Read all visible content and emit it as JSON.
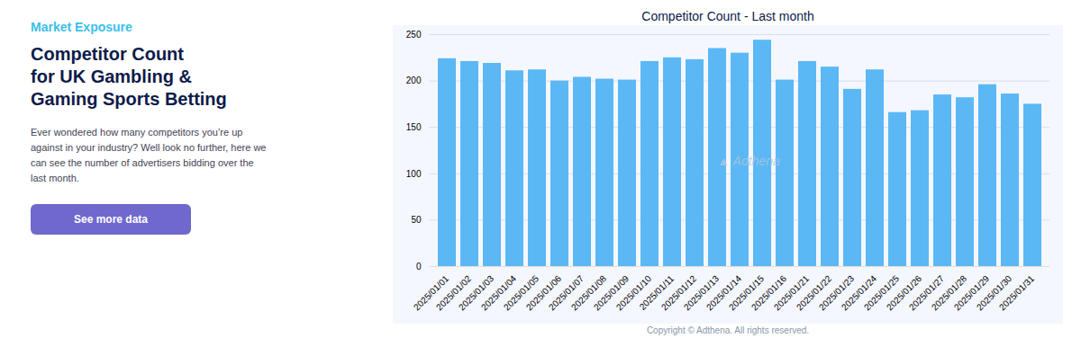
{
  "chart_data": {
    "type": "bar",
    "title": "Competitor Count - Last month",
    "categories": [
      "2025/01/01",
      "2025/01/02",
      "2025/01/03",
      "2025/01/04",
      "2025/01/05",
      "2025/01/06",
      "2025/01/07",
      "2025/01/08",
      "2025/01/09",
      "2025/01/10",
      "2025/01/11",
      "2025/01/12",
      "2025/01/13",
      "2025/01/14",
      "2025/01/15",
      "2025/01/16",
      "2025/01/21",
      "2025/01/22",
      "2025/01/23",
      "2025/01/24",
      "2025/01/25",
      "2025/01/26",
      "2025/01/27",
      "2025/01/28",
      "2025/01/29",
      "2025/01/30",
      "2025/01/31"
    ],
    "values": [
      224,
      221,
      219,
      211,
      212,
      200,
      204,
      202,
      201,
      221,
      225,
      223,
      235,
      230,
      244,
      201,
      221,
      215,
      191,
      212,
      166,
      168,
      185,
      182,
      196,
      186,
      175
    ],
    "color": "#5BB8F5",
    "ylim": [
      0,
      250
    ],
    "yticks": [
      0,
      50,
      100,
      150,
      200,
      250
    ],
    "grid": true,
    "annotations": [
      "Market Exposure",
      "Competitor Count\nfor UK Gambling &\nGaming Sports Betting",
      "Ever wondered how many competitors you’re up\nagainst in your industry? Well look no further, here we\ncan see the number of advertisers bidding over the\nlast month.",
      "See more data",
      "▲ Adthena",
      "Copyright © Adthena. All rights reserved."
    ]
  }
}
